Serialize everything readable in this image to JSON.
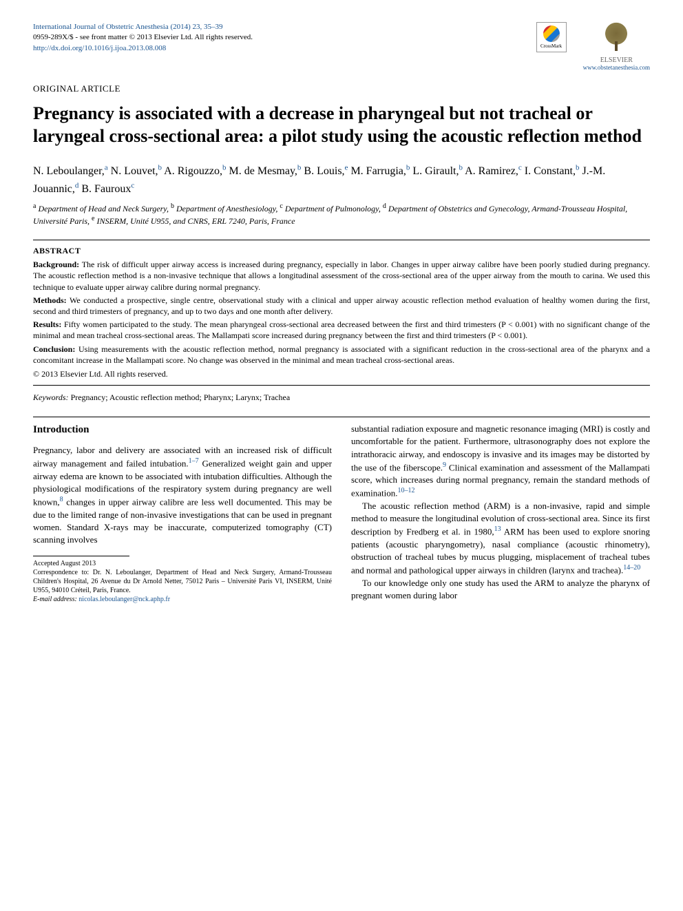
{
  "journal": {
    "citation": "International Journal of Obstetric Anesthesia (2014) 23, 35–39",
    "issn_line": "0959-289X/$ - see front matter © 2013 Elsevier Ltd. All rights reserved.",
    "doi": "http://dx.doi.org/10.1016/j.ijoa.2013.08.008",
    "publisher_url": "www.obstetanesthesia.com",
    "crossmark_label": "CrossMark",
    "elsevier_label": "ELSEVIER"
  },
  "article": {
    "type": "ORIGINAL ARTICLE",
    "title": "Pregnancy is associated with a decrease in pharyngeal but not tracheal or laryngeal cross-sectional area: a pilot study using the acoustic reflection method"
  },
  "authors": [
    {
      "name": "N. Leboulanger,",
      "aff": "a"
    },
    {
      "name": "N. Louvet,",
      "aff": "b"
    },
    {
      "name": "A. Rigouzzo,",
      "aff": "b"
    },
    {
      "name": "M. de Mesmay,",
      "aff": "b"
    },
    {
      "name": "B. Louis,",
      "aff": "e"
    },
    {
      "name": "M. Farrugia,",
      "aff": "b"
    },
    {
      "name": "L. Girault,",
      "aff": "b"
    },
    {
      "name": "A. Ramirez,",
      "aff": "c"
    },
    {
      "name": "I. Constant,",
      "aff": "b"
    },
    {
      "name": "J.-M. Jouannic,",
      "aff": "d"
    },
    {
      "name": "B. Fauroux",
      "aff": "c"
    }
  ],
  "affiliations": {
    "a": "Department of Head and Neck Surgery,",
    "b": "Department of Anesthesiology,",
    "c": "Department of Pulmonology,",
    "d": "Department of Obstetrics and Gynecology, Armand-Trousseau Hospital, Université Paris,",
    "e": "INSERM, Unité U955, and CNRS, ERL 7240, Paris, France"
  },
  "abstract": {
    "label": "ABSTRACT",
    "background_label": "Background:",
    "background": "The risk of difficult upper airway access is increased during pregnancy, especially in labor. Changes in upper airway calibre have been poorly studied during pregnancy. The acoustic reflection method is a non-invasive technique that allows a longitudinal assessment of the cross-sectional area of the upper airway from the mouth to carina. We used this technique to evaluate upper airway calibre during normal pregnancy.",
    "methods_label": "Methods:",
    "methods": "We conducted a prospective, single centre, observational study with a clinical and upper airway acoustic reflection method evaluation of healthy women during the first, second and third trimesters of pregnancy, and up to two days and one month after delivery.",
    "results_label": "Results:",
    "results": "Fifty women participated to the study. The mean pharyngeal cross-sectional area decreased between the first and third trimesters (P < 0.001) with no significant change of the minimal and mean tracheal cross-sectional areas. The Mallampati score increased during pregnancy between the first and third trimesters (P < 0.001).",
    "conclusion_label": "Conclusion:",
    "conclusion": "Using measurements with the acoustic reflection method, normal pregnancy is associated with a significant reduction in the cross-sectional area of the pharynx and a concomitant increase in the Mallampati score. No change was observed in the minimal and mean tracheal cross-sectional areas.",
    "copyright": "© 2013 Elsevier Ltd. All rights reserved."
  },
  "keywords": {
    "label": "Keywords:",
    "list": "Pregnancy; Acoustic reflection method; Pharynx; Larynx; Trachea"
  },
  "body": {
    "intro_head": "Introduction",
    "left_p1a": "Pregnancy, labor and delivery are associated with an increased risk of difficult airway management and failed intubation.",
    "left_cite1": "1–7",
    "left_p1b": " Generalized weight gain and upper airway edema are known to be associated with intubation difficulties. Although the physiological modifications of the respiratory system during pregnancy are well known,",
    "left_cite2": "8",
    "left_p1c": " changes in upper airway calibre are less well documented. This may be due to the limited range of non-invasive investigations that can be used in pregnant women. Standard X-rays may be inaccurate, computerized tomography (CT) scanning involves",
    "right_p1a": "substantial radiation exposure and magnetic resonance imaging (MRI) is costly and uncomfortable for the patient. Furthermore, ultrasonography does not explore the intrathoracic airway, and endoscopy is invasive and its images may be distorted by the use of the fiberscope.",
    "right_cite1": "9",
    "right_p1b": " Clinical examination and assessment of the Mallampati score, which increases during normal pregnancy, remain the standard methods of examination.",
    "right_cite2": "10–12",
    "right_p2a": "The acoustic reflection method (ARM) is a non-invasive, rapid and simple method to measure the longitudinal evolution of cross-sectional area. Since its first description by Fredberg et al. in 1980,",
    "right_cite3": "13",
    "right_p2b": " ARM has been used to explore snoring patients (acoustic pharyngometry), nasal compliance (acoustic rhinometry), obstruction of tracheal tubes by mucus plugging, misplacement of tracheal tubes and normal and pathological upper airways in children (larynx and trachea).",
    "right_cite4": "14–20",
    "right_p3": "To our knowledge only one study has used the ARM to analyze the pharynx of pregnant women during labor"
  },
  "footnotes": {
    "accepted": "Accepted August 2013",
    "correspondence": "Correspondence to: Dr. N. Leboulanger, Department of Head and Neck Surgery, Armand-Trousseau Children's Hospital, 26 Avenue du Dr Arnold Netter, 75012 Paris – Université Paris VI, INSERM, Unité U955, 94010 Créteil, Paris, France.",
    "email_label": "E-mail address:",
    "email": "nicolas.leboulanger@nck.aphp.fr"
  },
  "colors": {
    "link": "#1a5490",
    "text": "#000000",
    "background": "#ffffff"
  }
}
